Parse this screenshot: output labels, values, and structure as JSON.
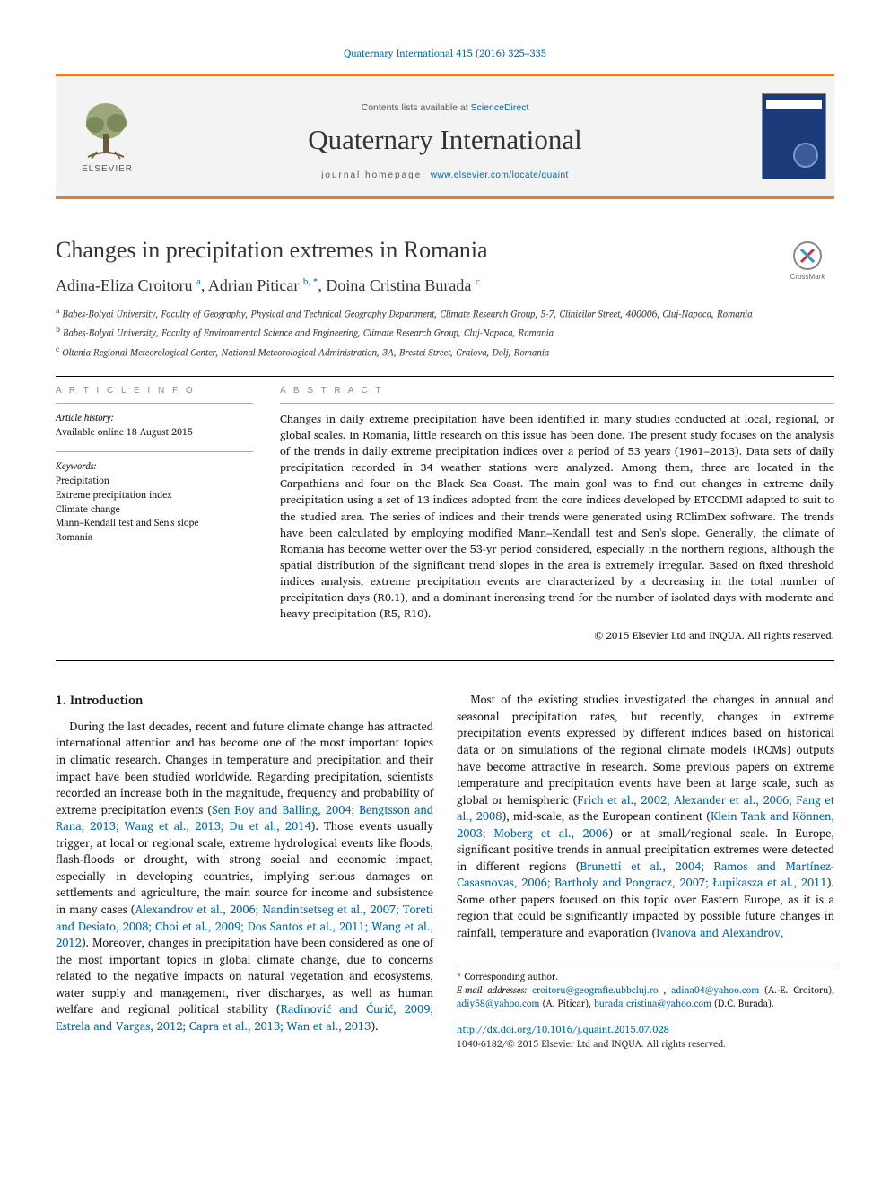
{
  "colors": {
    "accent_orange": "#e77b2f",
    "link_blue": "#0066a6",
    "masthead_bg": "#f3f3f3",
    "cover_bg": "#1a3a7a",
    "text": "#1a1a1a",
    "muted": "#888888"
  },
  "top_citation": "Quaternary International 415 (2016) 325–335",
  "masthead": {
    "publisher_logo_label": "ELSEVIER",
    "contents_prefix": "Contents lists available at ",
    "contents_link": "ScienceDirect",
    "journal_title": "Quaternary International",
    "homepage_prefix": "journal homepage: ",
    "homepage_url": "www.elsevier.com/locate/quaint"
  },
  "crossmark_label": "CrossMark",
  "title": "Changes in precipitation extremes in Romania",
  "authors_html": "Adina-Eliza Croitoru <sup>a</sup>, Adrian Piticar <sup>b, *</sup>, Doina Cristina Burada <sup>c</sup>",
  "affiliations": [
    "a Babeș-Bolyai University, Faculty of Geography, Physical and Technical Geography Department, Climate Research Group, 5-7, Clinicilor Street, 400006, Cluj-Napoca, Romania",
    "b Babeș-Bolyai University, Faculty of Environmental Science and Engineering, Climate Research Group, Cluj-Napoca, Romania",
    "c Oltenia Regional Meteorological Center, National Meteorological Administration, 3A, Brestei Street, Craiova, Dolj, Romania"
  ],
  "article_info": {
    "label": "A R T I C L E  I N F O",
    "history_head": "Article history:",
    "history_line": "Available online 18 August 2015",
    "keywords_head": "Keywords:",
    "keywords": [
      "Precipitation",
      "Extreme precipitation index",
      "Climate change",
      "Mann–Kendall test and Sen's slope",
      "Romania"
    ]
  },
  "abstract": {
    "label": "A B S T R A C T",
    "text": "Changes in daily extreme precipitation have been identified in many studies conducted at local, regional, or global scales. In Romania, little research on this issue has been done. The present study focuses on the analysis of the trends in daily extreme precipitation indices over a period of 53 years (1961–2013). Data sets of daily precipitation recorded in 34 weather stations were analyzed. Among them, three are located in the Carpathians and four on the Black Sea Coast. The main goal was to find out changes in extreme daily precipitation using a set of 13 indices adopted from the core indices developed by ETCCDMI adapted to suit to the studied area. The series of indices and their trends were generated using RClimDex software. The trends have been calculated by employing modified Mann–Kendall test and Sen's slope. Generally, the climate of Romania has become wetter over the 53-yr period considered, especially in the northern regions, although the spatial distribution of the significant trend slopes in the area is extremely irregular. Based on fixed threshold indices analysis, extreme precipitation events are characterized by a decreasing in the total number of precipitation days (R0.1), and a dominant increasing trend for the number of isolated days with moderate and heavy precipitation (R5, R10).",
    "copyright": "© 2015 Elsevier Ltd and INQUA. All rights reserved."
  },
  "body": {
    "section_heading": "1. Introduction",
    "para1_pre": "During the last decades, recent and future climate change has attracted international attention and has become one of the most important topics in climatic research. Changes in temperature and precipitation and their impact have been studied worldwide. Regarding precipitation, scientists recorded an increase both in the magnitude, frequency and probability of extreme precipitation events (",
    "para1_cite1": "Sen Roy and Balling, 2004; Bengtsson and Rana, 2013; Wang et al., 2013; Du et al., 2014",
    "para1_mid": "). Those events usually trigger, at local or regional scale, extreme hydrological events like floods, flash-floods or drought, with strong social and economic impact, especially in developing countries, implying serious damages on settlements and agriculture, the main source for income and subsistence in many cases (",
    "para1_cite2": "Alexandrov et al., 2006; Nandintsetseg et al., 2007; Toreti and Desiato, 2008; Choi et al., 2009; Dos Santos et al., 2011; Wang et al., 2012",
    "para1_post": "). Moreover, changes in precipitation have been considered as one of the most important topics in global climate change, due to concerns related to the negative impacts on natural vegetation and ecosystems, water supply and management, river discharges, as well as human welfare and regional political stability (",
    "para1_cite3": "Radinović and Ćurić, 2009; Estrela and Vargas, 2012; Capra et al., 2013; Wan et al., 2013",
    "para1_end": ").",
    "para2_pre": "Most of the existing studies investigated the changes in annual and seasonal precipitation rates, but recently, changes in extreme precipitation events expressed by different indices based on historical data or on simulations of the regional climate models (RCMs) outputs have become attractive in research. Some previous papers on extreme temperature and precipitation events have been at large scale, such as global or hemispheric (",
    "para2_cite1": "Frich et al., 2002; Alexander et al., 2006; Fang et al., 2008",
    "para2_mid1": "), mid-scale, as the European continent (",
    "para2_cite2": "Klein Tank and Können, 2003; Moberg et al., 2006",
    "para2_mid2": ") or at small/regional scale. In Europe, significant positive trends in annual precipitation extremes were detected in different regions (",
    "para2_cite3": "Brunetti et al., 2004; Ramos and Martínez-Casasnovas, 2006; Bartholy and Pongracz, 2007; Łupikasza et al., 2011",
    "para2_mid3": "). Some other papers focused on this topic over Eastern Europe, as it is a region that could be significantly impacted by possible future changes in rainfall, temperature and evaporation (",
    "para2_cite4": "Ivanova and Alexandrov,",
    "para2_end": ""
  },
  "footer": {
    "corr_label": "* Corresponding author.",
    "email_label": "E-mail addresses:",
    "emails": [
      {
        "addr": "croitoru@geografie.ubbcluj.ro",
        "who": ""
      },
      {
        "addr": "adina04@yahoo.com",
        "who": "(A.-E. Croitoru),"
      },
      {
        "addr": "adiy58@yahoo.com",
        "who": "(A. Piticar),"
      },
      {
        "addr": "burada_cristina@yahoo.com",
        "who": "(D.C. Burada)."
      }
    ],
    "doi": "http://dx.doi.org/10.1016/j.quaint.2015.07.028",
    "issn_line": "1040-6182/© 2015 Elsevier Ltd and INQUA. All rights reserved."
  }
}
